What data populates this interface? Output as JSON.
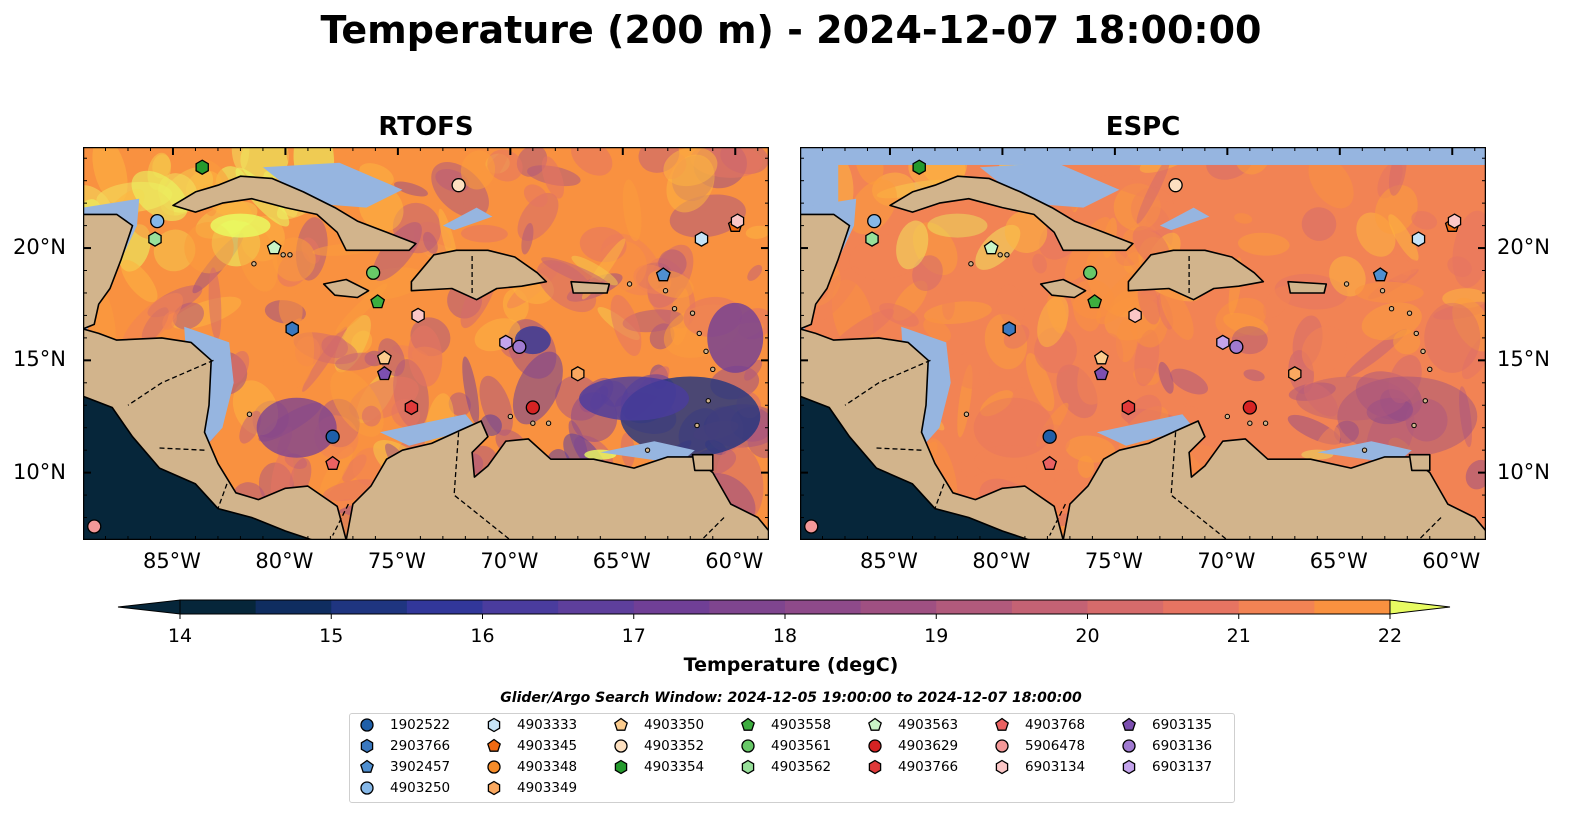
{
  "figure": {
    "title": "Temperature (200 m) - 2024-12-07 18:00:00",
    "search_window": "Glider/Argo Search Window: 2024-12-05 19:00:00 to 2024-12-07 18:00:00"
  },
  "panels": [
    {
      "title": "RTOFS"
    },
    {
      "title": "ESPC"
    }
  ],
  "axes": {
    "lon_labels": [
      "85°W",
      "80°W",
      "75°W",
      "70°W",
      "65°W",
      "60°W"
    ],
    "lon_values": [
      -85,
      -80,
      -75,
      -70,
      -65,
      -60
    ],
    "lat_labels": [
      "20°N",
      "15°N",
      "10°N"
    ],
    "lat_values": [
      20,
      15,
      10
    ],
    "lon_range": [
      -89,
      -58.5
    ],
    "lat_range": [
      7,
      24.5
    ]
  },
  "colorbar": {
    "label": "Temperature (degC)",
    "min": 14,
    "max": 22,
    "step": 0.5,
    "tick_labels": [
      "14",
      "15",
      "16",
      "17",
      "18",
      "19",
      "20",
      "21",
      "22"
    ],
    "extend": "both",
    "colors": [
      "#06263a",
      "#0f2d60",
      "#1f3580",
      "#32379a",
      "#4a3c9e",
      "#5e3f9c",
      "#703f96",
      "#7f458f",
      "#8e4a8a",
      "#9f5082",
      "#b15a7c",
      "#c46274",
      "#d66b6b",
      "#e67462",
      "#f28354",
      "#f99140",
      "#fb9d3c",
      "#fdb43f",
      "#f6c84a",
      "#f2e05c",
      "#e8fc62"
    ]
  },
  "colors": {
    "land": "#d2b48c",
    "shallow": "#96b5e0",
    "pacific": "#06263a",
    "coast": "#000000"
  },
  "legend": [
    {
      "id": "1902522",
      "marker": "circle",
      "color": "#1f5fa8"
    },
    {
      "id": "2903766",
      "marker": "hexagon",
      "color": "#3a78bf"
    },
    {
      "id": "3902457",
      "marker": "pentagon",
      "color": "#4f8fd0"
    },
    {
      "id": "4903250",
      "marker": "circle",
      "color": "#86b8e8"
    },
    {
      "id": "4903333",
      "marker": "hexagon",
      "color": "#c6e4f7"
    },
    {
      "id": "4903345",
      "marker": "pentagon",
      "color": "#f06a12"
    },
    {
      "id": "4903348",
      "marker": "circle",
      "color": "#f58c2a"
    },
    {
      "id": "4903349",
      "marker": "hexagon",
      "color": "#f9a860"
    },
    {
      "id": "4903350",
      "marker": "pentagon",
      "color": "#fccc8e"
    },
    {
      "id": "4903352",
      "marker": "circle",
      "color": "#fde0c0"
    },
    {
      "id": "4903354",
      "marker": "hexagon",
      "color": "#249a2d"
    },
    {
      "id": "4903558",
      "marker": "pentagon",
      "color": "#3dae3f"
    },
    {
      "id": "4903561",
      "marker": "circle",
      "color": "#68c868"
    },
    {
      "id": "4903562",
      "marker": "hexagon",
      "color": "#98e09a"
    },
    {
      "id": "4903563",
      "marker": "pentagon",
      "color": "#c9f4c6"
    },
    {
      "id": "4903629",
      "marker": "circle",
      "color": "#d62323"
    },
    {
      "id": "4903766",
      "marker": "hexagon",
      "color": "#e03a3a"
    },
    {
      "id": "4903768",
      "marker": "pentagon",
      "color": "#ea6262"
    },
    {
      "id": "5906478",
      "marker": "circle",
      "color": "#f49898"
    },
    {
      "id": "6903134",
      "marker": "hexagon",
      "color": "#fbc7c7"
    },
    {
      "id": "6903135",
      "marker": "pentagon",
      "color": "#7c4fb0"
    },
    {
      "id": "6903136",
      "marker": "circle",
      "color": "#a07ad0"
    },
    {
      "id": "6903137",
      "marker": "hexagon",
      "color": "#c4a4ec"
    }
  ],
  "observations": [
    {
      "id": "4903354",
      "lon": -83.7,
      "lat": 23.6
    },
    {
      "id": "4903250",
      "lon": -85.7,
      "lat": 21.2
    },
    {
      "id": "4903562",
      "lon": -85.8,
      "lat": 20.4
    },
    {
      "id": "4903563",
      "lon": -80.5,
      "lat": 20.0
    },
    {
      "id": "4903352",
      "lon": -72.3,
      "lat": 22.8
    },
    {
      "id": "4903561",
      "lon": -76.1,
      "lat": 18.9
    },
    {
      "id": "4903558",
      "lon": -75.9,
      "lat": 17.6
    },
    {
      "id": "2903766",
      "lon": -79.7,
      "lat": 16.4
    },
    {
      "id": "6903134",
      "lon": -74.1,
      "lat": 17.0
    },
    {
      "id": "4903350",
      "lon": -75.6,
      "lat": 15.1
    },
    {
      "id": "6903135",
      "lon": -75.6,
      "lat": 14.4
    },
    {
      "id": "6903137",
      "lon": -70.2,
      "lat": 15.8
    },
    {
      "id": "6903136",
      "lon": -69.6,
      "lat": 15.6
    },
    {
      "id": "4903349",
      "lon": -67.0,
      "lat": 14.4
    },
    {
      "id": "4903766",
      "lon": -74.4,
      "lat": 12.9
    },
    {
      "id": "4903629",
      "lon": -69.0,
      "lat": 12.9
    },
    {
      "id": "1902522",
      "lon": -77.9,
      "lat": 11.6
    },
    {
      "id": "4903768",
      "lon": -77.9,
      "lat": 10.4
    },
    {
      "id": "3902457",
      "lon": -63.2,
      "lat": 18.8
    },
    {
      "id": "4903333",
      "lon": -61.5,
      "lat": 20.4
    },
    {
      "id": "4903345",
      "lon": -60.0,
      "lat": 21.0
    },
    {
      "id": "6903134",
      "lon": -59.9,
      "lat": 21.2
    },
    {
      "id": "5906478",
      "lon": -88.5,
      "lat": 7.6
    }
  ]
}
